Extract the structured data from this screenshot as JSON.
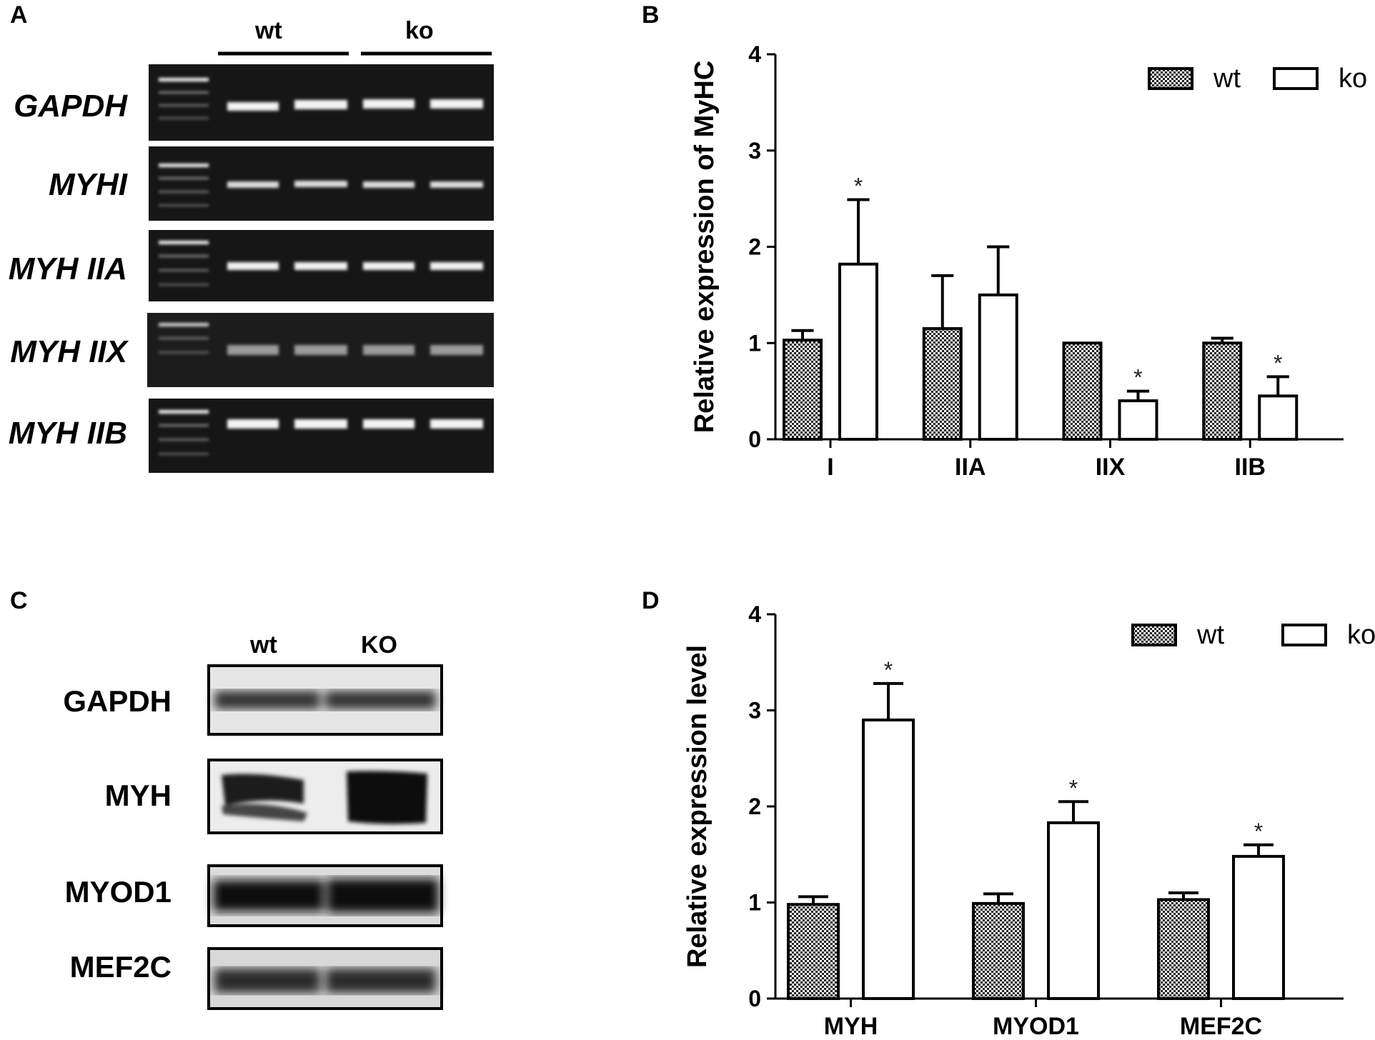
{
  "panels": {
    "a": "A",
    "b": "B",
    "c": "C",
    "d": "D"
  },
  "gel": {
    "groups": [
      "wt",
      "ko"
    ],
    "genes": [
      "GAPDH",
      "MYHI",
      "MYH IIA",
      "MYH IIX",
      "MYH IIB"
    ]
  },
  "western": {
    "lanes": [
      "wt",
      "KO"
    ],
    "proteins": [
      "GAPDH",
      "MYH",
      "MYOD1",
      "MEF2C"
    ]
  },
  "colors": {
    "wt_fill": "#9a9a9a",
    "ko_fill": "#ffffff",
    "stroke": "#000000"
  },
  "chart_data": [
    {
      "id": "B",
      "type": "bar",
      "title": "",
      "xlabel": "",
      "ylabel": "Relative expression of MyHC",
      "ylim": [
        0,
        4
      ],
      "yticks": [
        "0",
        "1",
        "2",
        "3",
        "4"
      ],
      "legend_position": "top-right",
      "categories": [
        "I",
        "IIA",
        "IIX",
        "IIB"
      ],
      "series": [
        {
          "name": "wt",
          "values": [
            1.03,
            1.15,
            1.0,
            1.0
          ],
          "errors": [
            0.1,
            0.55,
            0.0,
            0.05
          ],
          "significant": [
            false,
            false,
            false,
            false
          ]
        },
        {
          "name": "ko",
          "values": [
            1.82,
            1.5,
            0.4,
            0.45
          ],
          "errors": [
            0.67,
            0.5,
            0.1,
            0.2
          ],
          "significant": [
            true,
            false,
            true,
            true
          ]
        }
      ],
      "annotation": "*"
    },
    {
      "id": "D",
      "type": "bar",
      "title": "",
      "xlabel": "",
      "ylabel": "Relative expression level",
      "ylim": [
        0,
        4
      ],
      "yticks": [
        "0",
        "1",
        "2",
        "3",
        "4"
      ],
      "legend_position": "top-right",
      "categories": [
        "MYH",
        "MYOD1",
        "MEF2C"
      ],
      "series": [
        {
          "name": "wt",
          "values": [
            0.98,
            0.99,
            1.03
          ],
          "errors": [
            0.08,
            0.1,
            0.07
          ],
          "significant": [
            false,
            false,
            false
          ]
        },
        {
          "name": "ko",
          "values": [
            2.9,
            1.83,
            1.48
          ],
          "errors": [
            0.38,
            0.22,
            0.12
          ],
          "significant": [
            true,
            true,
            true
          ]
        }
      ],
      "annotation": "*"
    }
  ]
}
